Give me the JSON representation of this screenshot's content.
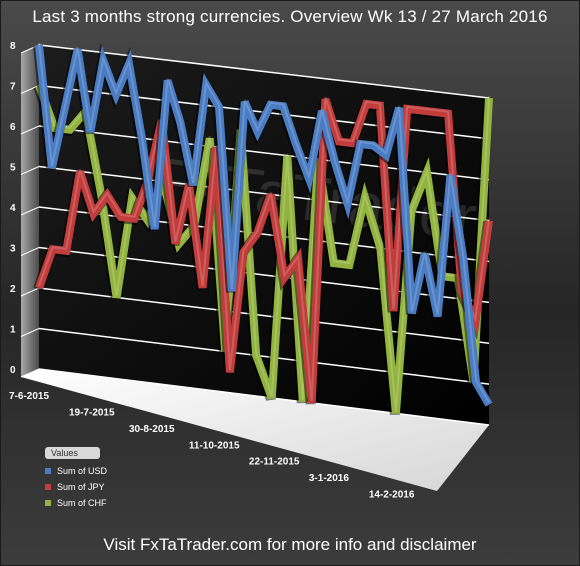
{
  "title": "Last 3 months strong currencies. Overview Wk 13 / 27 March 2016",
  "footer": "Visit FxTaTrader.com for more info and disclaimer",
  "watermark": "FxTaTrader",
  "legend": {
    "title": "Values"
  },
  "colors": {
    "USD": "#4a7cc3",
    "JPY": "#c23c3c",
    "CHF": "#92b43e",
    "plot_wall": "#000000",
    "floor": "#ffffff",
    "grid": "#ffffff"
  },
  "chart_data": {
    "type": "line",
    "title": "Last 3 months strong currencies. Overview Wk 13 / 27 March 2016",
    "xlabel": "",
    "ylabel": "",
    "ylim": [
      0,
      8
    ],
    "yticks": [
      "0",
      "1",
      "2",
      "3",
      "4",
      "5",
      "6",
      "7",
      "8"
    ],
    "x_tick_labels": [
      "7-6-2015",
      "19-7-2015",
      "30-8-2015",
      "11-10-2015",
      "22-11-2015",
      "3-1-2016",
      "14-2-2016"
    ],
    "grid": true,
    "legend_position": "bottom-left",
    "style": "3d-line",
    "series": [
      {
        "name": "Sum of USD",
        "values": [
          8,
          5,
          6.5,
          8,
          6,
          7.8,
          7,
          7.8,
          6,
          3.8,
          7.5,
          6.5,
          5,
          7.5,
          7,
          2.5,
          7.2,
          6.5,
          7.2,
          7.2,
          6.3,
          5.5,
          7.2,
          6,
          5,
          6.5,
          6.5,
          6.3,
          7.5,
          2.5,
          4,
          2.5,
          6,
          4,
          1,
          0.5
        ]
      },
      {
        "name": "Sum of JPY",
        "values": [
          2,
          3,
          3,
          5,
          4,
          4.5,
          4,
          4,
          5,
          6.5,
          3.5,
          5,
          2.5,
          6,
          0.5,
          3.5,
          4,
          5,
          3,
          3.5,
          0,
          7.5,
          6.5,
          6.5,
          7.5,
          7.5,
          2.5,
          7.5,
          7.5,
          7.5,
          7.5,
          3.2,
          2.5,
          5
        ]
      },
      {
        "name": "Sum of CHF",
        "values": [
          7,
          6,
          6,
          6.5,
          4.5,
          2,
          4.5,
          4,
          5,
          3.5,
          4,
          6.2,
          1,
          6.5,
          1,
          0,
          6,
          0,
          6,
          3.5,
          3.5,
          5.2,
          4,
          0,
          5,
          6,
          3.5,
          3.5,
          1,
          8
        ]
      }
    ]
  }
}
